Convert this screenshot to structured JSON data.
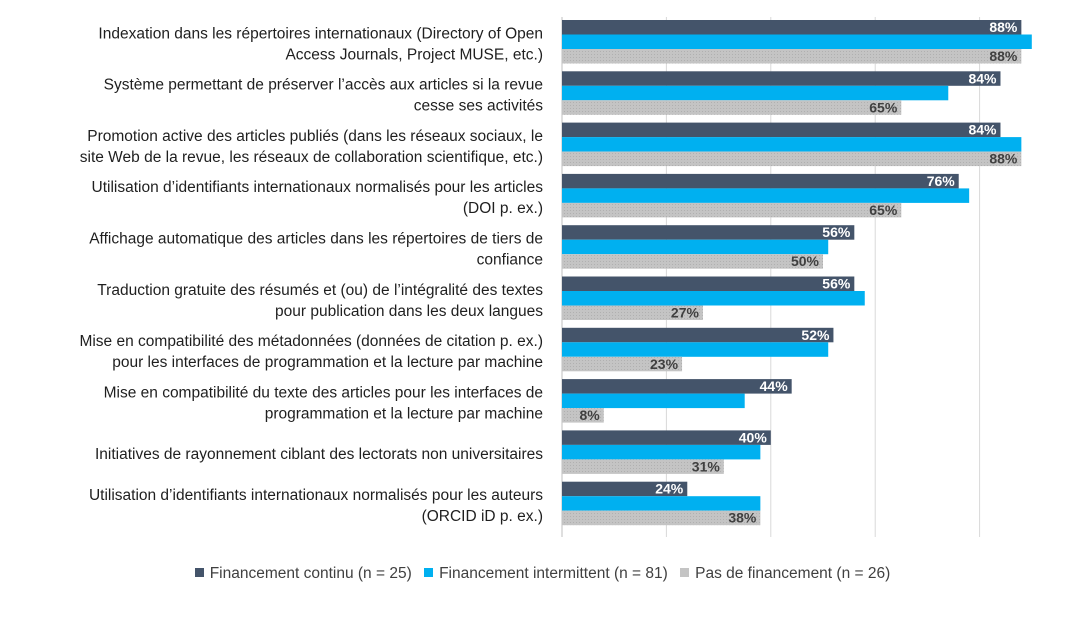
{
  "chart_data": {
    "type": "bar",
    "orientation": "horizontal",
    "title": "",
    "xlabel": "",
    "ylabel": "",
    "xlim": [
      0,
      100
    ],
    "grid": true,
    "legend_position": "bottom",
    "categories": [
      [
        "Indexation dans les répertoires internationaux (Directory of Open",
        "Access Journals, Project MUSE, etc.)"
      ],
      [
        "Système permettant de préserver l’accès aux articles si la revue",
        "cesse ses activités"
      ],
      [
        "Promotion active des articles publiés (dans les réseaux sociaux, le",
        "site Web de la revue, les réseaux de collaboration scientifique, etc.)"
      ],
      [
        "Utilisation d’identifiants internationaux normalisés pour les articles",
        "(DOI p. ex.)"
      ],
      [
        "Affichage automatique des articles dans les répertoires de tiers de",
        "confiance"
      ],
      [
        "Traduction gratuite des résumés et (ou) de l’intégralité des textes",
        "pour publication dans les deux langues"
      ],
      [
        "Mise en compatibilité des métadonnées (données de citation p. ex.)",
        "pour les interfaces de programmation et la lecture par machine"
      ],
      [
        "Mise en compatibilité du texte des articles pour les interfaces de",
        "programmation et la lecture par machine"
      ],
      [
        "Initiatives de rayonnement ciblant des lectorats non universitaires"
      ],
      [
        "Utilisation d’identifiants internationaux normalisés pour les auteurs",
        "(ORCID iD p. ex.)"
      ]
    ],
    "series": [
      {
        "name": "Financement continu (n = 25)",
        "color": "#44546a",
        "label_color": "#ffffff",
        "values": [
          88,
          84,
          84,
          76,
          56,
          56,
          52,
          44,
          40,
          24
        ],
        "labels": [
          "88%",
          "84%",
          "84%",
          "76%",
          "56%",
          "56%",
          "52%",
          "44%",
          "40%",
          "24%"
        ]
      },
      {
        "name": "Financement intermittent (n = 81)",
        "color": "#00b0f0",
        "label_color": null,
        "values": [
          90,
          74,
          88,
          78,
          51,
          58,
          51,
          35,
          38,
          38
        ],
        "labels": []
      },
      {
        "name": "Pas de financement (n = 26)",
        "color": "#c4c4c4",
        "label_color": "#404040",
        "values": [
          88,
          65,
          88,
          65,
          50,
          27,
          23,
          8,
          31,
          38
        ],
        "labels": [
          "88%",
          "65%",
          "88%",
          "65%",
          "50%",
          "27%",
          "23%",
          "8%",
          "31%",
          "38%"
        ]
      }
    ]
  }
}
